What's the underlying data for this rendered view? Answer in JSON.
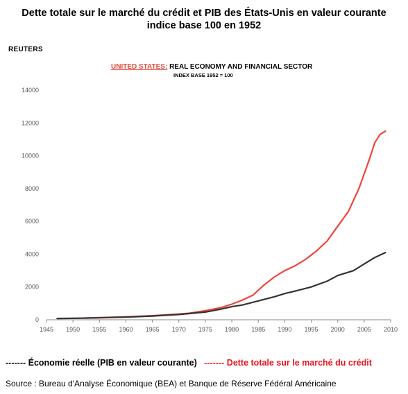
{
  "header": {
    "title_line1": "Dette totale sur le marché du crédit et PIB des États-Unis en valeur courante",
    "title_line2": "indice base 100 en 1952",
    "brand": "REUTERS",
    "inner_title_red": "UNITED STATES:",
    "inner_title_rest": " REAL ECONOMY AND FINANCIAL SECTOR",
    "inner_subtitle": "INDEX BASE 1952 = 100"
  },
  "legend": {
    "black_dashes": "-------",
    "black_label": " Économie réelle (PIB en valeur courante)",
    "red_dashes": "-------",
    "red_label": " Dette totale sur le marché du crédit"
  },
  "source": "Source : Bureau d'Analyse Économique (BEA) et Banque de Réserve Fédéral Américaine",
  "colors": {
    "debt": "#f04438",
    "gdp": "#333333",
    "axis": "#888888"
  },
  "chart_data": {
    "type": "line",
    "title": "UNITED STATES: REAL ECONOMY AND FINANCIAL SECTOR",
    "subtitle": "INDEX BASE 1952 = 100",
    "xlim": [
      1945,
      2010
    ],
    "ylim": [
      0,
      14000
    ],
    "x_ticks": [
      1945,
      1950,
      1955,
      1960,
      1965,
      1970,
      1975,
      1980,
      1985,
      1990,
      1995,
      2000,
      2005,
      2010
    ],
    "y_ticks": [
      0,
      2000,
      4000,
      6000,
      8000,
      10000,
      12000,
      14000
    ],
    "grid": false,
    "legend_position": "bottom",
    "series": [
      {
        "name": "Dette totale sur le marché du crédit",
        "color": "#f04438",
        "x": [
          1952,
          1955,
          1960,
          1965,
          1970,
          1972,
          1975,
          1978,
          1980,
          1982,
          1984,
          1986,
          1988,
          1990,
          1992,
          1994,
          1996,
          1998,
          2000,
          2002,
          2004,
          2006,
          2007,
          2008,
          2009
        ],
        "y": [
          100,
          130,
          180,
          250,
          350,
          400,
          550,
          750,
          950,
          1200,
          1500,
          2100,
          2600,
          3000,
          3300,
          3700,
          4200,
          4800,
          5700,
          6600,
          8000,
          9800,
          10800,
          11300,
          11500
        ]
      },
      {
        "name": "Économie réelle (PIB en valeur courante)",
        "color": "#333333",
        "x": [
          1947,
          1950,
          1952,
          1955,
          1960,
          1965,
          1970,
          1975,
          1978,
          1980,
          1982,
          1985,
          1988,
          1990,
          1992,
          1995,
          1998,
          2000,
          2003,
          2005,
          2007,
          2009
        ],
        "y": [
          80,
          90,
          100,
          120,
          160,
          230,
          320,
          470,
          650,
          800,
          900,
          1150,
          1400,
          1600,
          1750,
          2000,
          2350,
          2700,
          3000,
          3400,
          3800,
          4100
        ]
      }
    ]
  }
}
